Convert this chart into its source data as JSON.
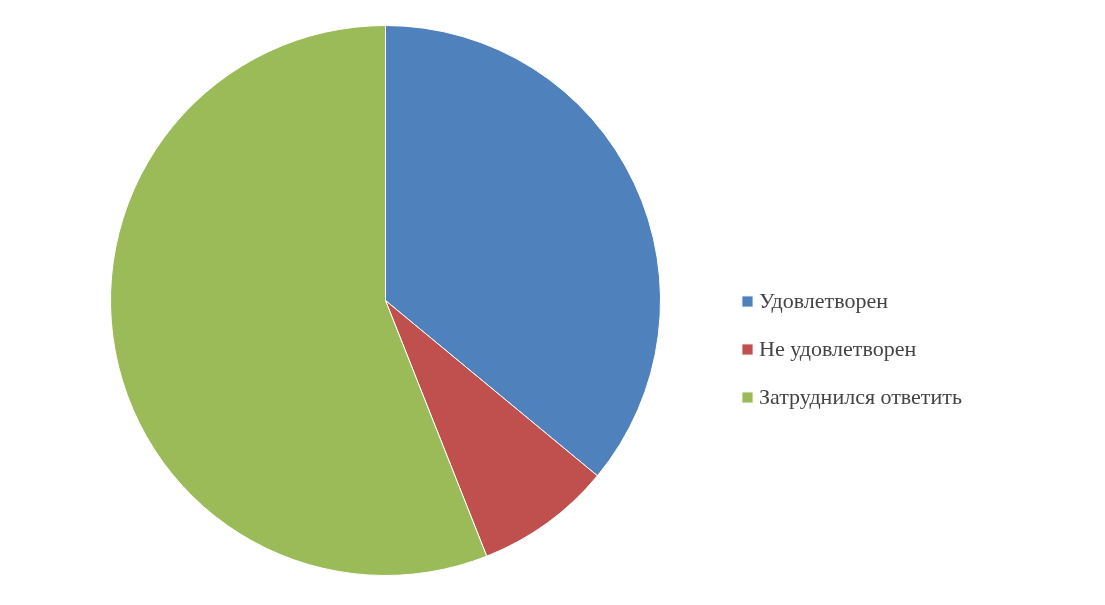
{
  "chart_data": {
    "type": "pie",
    "categories": [
      "Удовлетворен",
      "Не удовлетворен",
      "Затруднился ответить"
    ],
    "values": [
      36,
      8,
      56
    ],
    "colors": [
      "#4f81bd",
      "#c0504d",
      "#9bbb59"
    ],
    "legend": "right"
  }
}
